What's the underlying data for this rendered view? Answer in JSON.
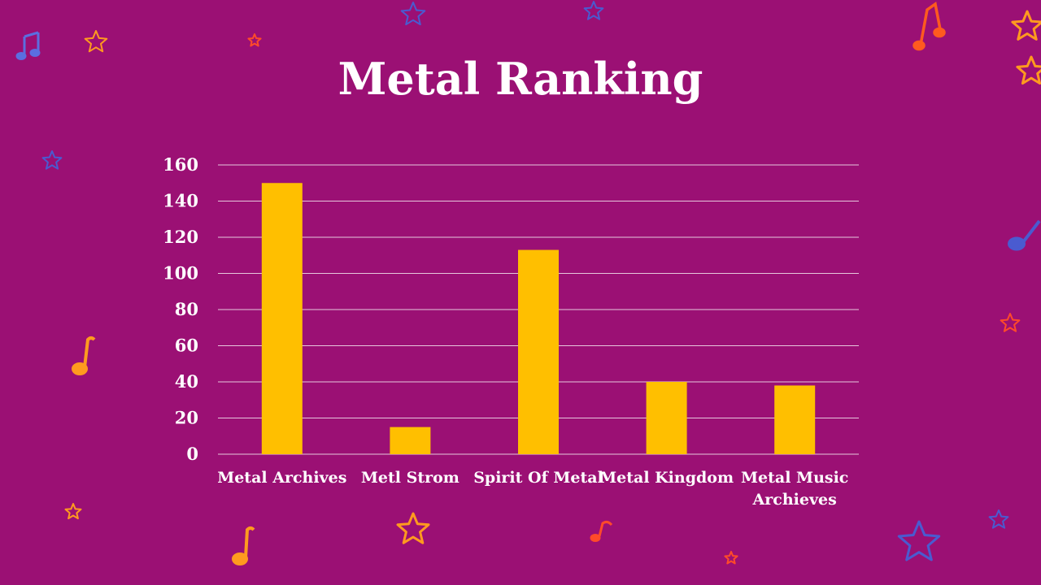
{
  "slide": {
    "title": "Metal Ranking"
  },
  "chart_data": {
    "type": "bar",
    "title": "Metal Ranking",
    "categories": [
      "Metal Archives",
      "Metl Strom",
      "Spirit Of Metal",
      "Metal Kingdom",
      "Metal Music Archieves"
    ],
    "category_lines": [
      [
        "Metal Archives"
      ],
      [
        "Metl Strom"
      ],
      [
        "Spirit Of Metal"
      ],
      [
        "Metal Kingdom"
      ],
      [
        "Metal Music",
        "Archieves"
      ]
    ],
    "values": [
      150,
      15,
      113,
      40,
      38
    ],
    "xlabel": "",
    "ylabel": "",
    "ylim": [
      0,
      160
    ],
    "yticks": [
      0,
      20,
      40,
      60,
      80,
      100,
      120,
      140,
      160
    ],
    "grid": true,
    "legend": "none",
    "bar_color": "#ffbf00",
    "grid_color": "#e6c7dc"
  },
  "colors": {
    "background": "#9b1074",
    "text": "#ffffff",
    "star_orange": "#ff9a1f",
    "star_blue": "#4a5bd0",
    "star_red": "#ff4a2a"
  },
  "decorations": [
    "music-note-icon",
    "star-icon"
  ]
}
